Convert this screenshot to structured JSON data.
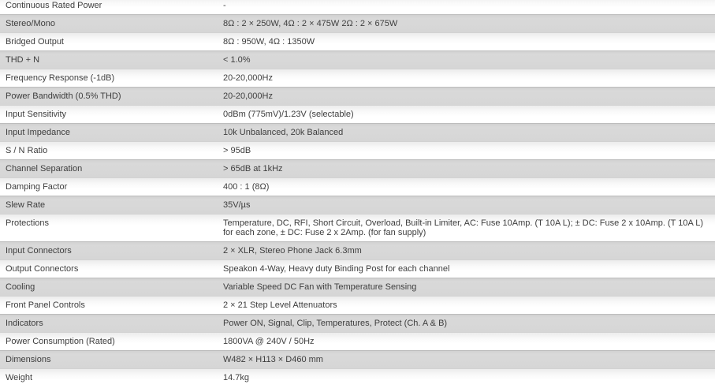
{
  "spec_table": {
    "rows": [
      {
        "label": "Continuous Rated Power",
        "value": "-"
      },
      {
        "label": "Stereo/Mono",
        "value": "8Ω : 2 × 250W, 4Ω : 2 × 475W 2Ω : 2 × 675W"
      },
      {
        "label": "Bridged Output",
        "value": "8Ω : 950W, 4Ω : 1350W"
      },
      {
        "label": "THD + N",
        "value": "< 1.0%"
      },
      {
        "label": "Frequency Response (-1dB)",
        "value": "20-20,000Hz"
      },
      {
        "label": "Power Bandwidth (0.5% THD)",
        "value": "20-20,000Hz"
      },
      {
        "label": "Input Sensitivity",
        "value": "0dBm (775mV)/1.23V (selectable)"
      },
      {
        "label": "Input Impedance",
        "value": "10k Unbalanced, 20k Balanced"
      },
      {
        "label": "S / N Ratio",
        "value": "> 95dB"
      },
      {
        "label": "Channel Separation",
        "value": "> 65dB at 1kHz"
      },
      {
        "label": "Damping Factor",
        "value": "400 : 1 (8Ω)"
      },
      {
        "label": "Slew Rate",
        "value": "35V/µs"
      },
      {
        "label": "Protections",
        "value": "Temperature, DC, RFI, Short Circuit, Overload, Built-in Limiter, AC: Fuse 10Amp. (T 10A L); ± DC: Fuse 2 x 10Amp. (T 10A L) for each zone, ± DC: Fuse 2 x 2Amp. (for fan supply)"
      },
      {
        "label": "Input Connectors",
        "value": "2 × XLR, Stereo Phone Jack 6.3mm"
      },
      {
        "label": "Output Connectors",
        "value": "Speakon 4-Way, Heavy duty Binding Post for each channel"
      },
      {
        "label": "Cooling",
        "value": "Variable Speed DC Fan with Temperature Sensing"
      },
      {
        "label": "Front Panel Controls",
        "value": "2 × 21 Step Level Attenuators"
      },
      {
        "label": "Indicators",
        "value": "Power ON, Signal, Clip, Temperatures, Protect (Ch. A & B)"
      },
      {
        "label": "Power Consumption (Rated)",
        "value": "1800VA @ 240V / 50Hz"
      },
      {
        "label": "Dimensions",
        "value": "W482 × H113 × D460 mm"
      },
      {
        "label": "Weight",
        "value": "14.7kg"
      }
    ],
    "colors": {
      "row_bg": "#ffffff",
      "row_alt_bg": "#d8d8d8",
      "separator": "#c6c6c6",
      "text": "#3e3e3e"
    }
  }
}
